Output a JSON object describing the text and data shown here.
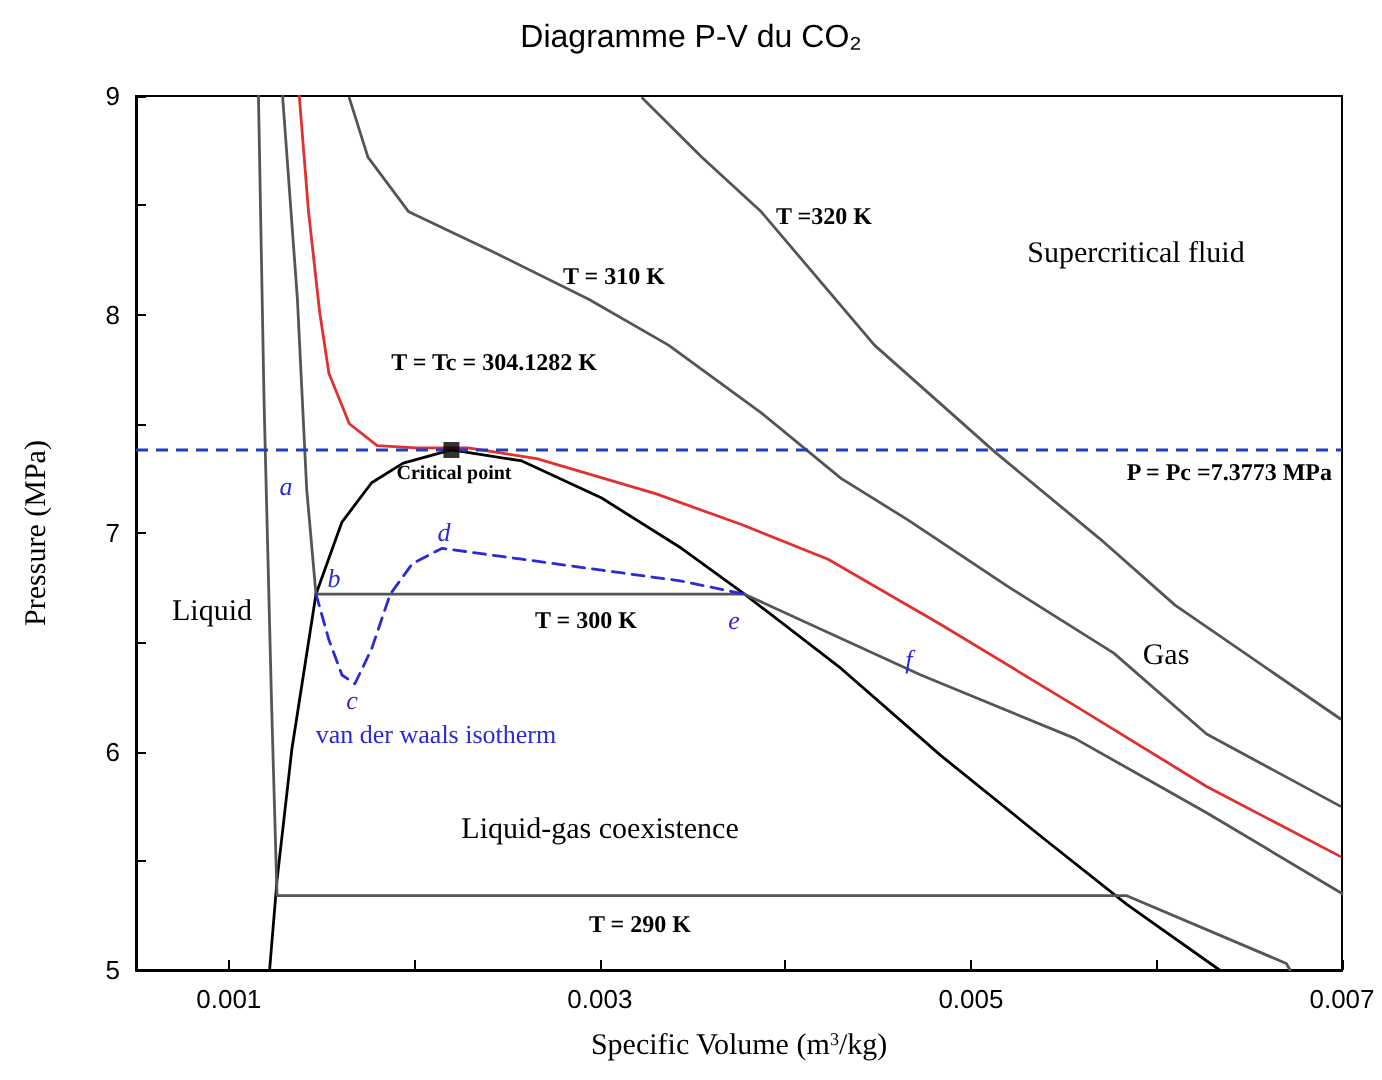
{
  "chart_data": {
    "type": "line",
    "title": "Diagramme P-V du CO₂",
    "xlabel": "Specific Volume (m$^{3}$/kg)",
    "ylabel": "Pressure (MPa)",
    "xlim": [
      0.0005,
      0.007
    ],
    "xticks": [
      0.001,
      {
        "value": 0.002,
        "label": null
      },
      0.003,
      {
        "value": 0.004,
        "label": null
      },
      0.005,
      {
        "value": 0.006,
        "label": null
      },
      0.007
    ],
    "ylim": [
      5,
      9
    ],
    "yticks": [
      5,
      {
        "value": 5.5,
        "label": null
      },
      6,
      {
        "value": 6.5,
        "label": null
      },
      7,
      {
        "value": 7.5,
        "label": null
      },
      8,
      {
        "value": 8.5,
        "label": null
      },
      9
    ],
    "grid": false,
    "marker": "none",
    "series": [
      {
        "color": "#000000",
        "line_style": "solid",
        "x": [
          0.00122,
          0.00126,
          0.00134,
          0.00147,
          0.00161,
          0.00177,
          0.00194,
          0.0022,
          0.00258,
          0.00301,
          0.00344,
          0.00378,
          0.0043,
          0.00484,
          0.00538,
          0.00584,
          0.00634
        ],
        "values": [
          5.0,
          5.41,
          6.01,
          6.72,
          7.05,
          7.23,
          7.32,
          7.38,
          7.33,
          7.16,
          6.93,
          6.72,
          6.38,
          5.98,
          5.61,
          5.3,
          5.0
        ]
      },
      {
        "color": "#555555",
        "line_style": "solid",
        "x": [
          0.00116,
          0.00119,
          0.00123,
          0.00126,
          0.00584,
          0.0067,
          0.00672
        ],
        "values": [
          9.0,
          7.61,
          6.24,
          5.34,
          5.34,
          5.03,
          5.0
        ]
      },
      {
        "color": "#555555",
        "line_style": "solid",
        "x": [
          0.00129,
          0.00137,
          0.00142,
          0.00147,
          0.00378,
          0.00473,
          0.00556,
          0.00627,
          0.007
        ],
        "values": [
          9.0,
          8.07,
          7.2,
          6.72,
          6.72,
          6.35,
          6.06,
          5.72,
          5.35
        ]
      },
      {
        "color": "#e03030",
        "line_style": "solid",
        "x": [
          0.00138,
          0.00143,
          0.00149,
          0.00154,
          0.00165,
          0.0018,
          0.00201,
          0.00229,
          0.00266,
          0.0033,
          0.00376,
          0.00423,
          0.00484,
          0.00556,
          0.00627,
          0.00699
        ],
        "values": [
          9.0,
          8.47,
          8.01,
          7.73,
          7.5,
          7.4,
          7.39,
          7.39,
          7.34,
          7.18,
          7.04,
          6.88,
          6.58,
          6.21,
          5.84,
          5.52
        ]
      },
      {
        "color": "#555555",
        "line_style": "solid",
        "x": [
          0.00165,
          0.00175,
          0.00197,
          0.00244,
          0.00294,
          0.00337,
          0.00387,
          0.0043,
          0.00466,
          0.00519,
          0.00577,
          0.00627,
          0.00699
        ],
        "values": [
          8.99,
          8.72,
          8.47,
          8.28,
          8.07,
          7.86,
          7.55,
          7.25,
          7.06,
          6.76,
          6.45,
          6.08,
          5.75
        ]
      },
      {
        "color": "#555555",
        "line_style": "solid",
        "x": [
          0.00323,
          0.00355,
          0.00387,
          0.00448,
          0.00513,
          0.0057,
          0.0061,
          0.00699
        ],
        "values": [
          8.99,
          8.72,
          8.47,
          7.86,
          7.37,
          6.97,
          6.67,
          6.15
        ]
      },
      {
        "color": "#2a2ad8",
        "line_style": "dashed",
        "x": [
          0.00147,
          0.00154,
          0.00161,
          0.00168,
          0.00177,
          0.00187,
          0.00199,
          0.00215,
          0.00258,
          0.00301,
          0.00344,
          0.00378
        ],
        "values": [
          6.72,
          6.51,
          6.35,
          6.31,
          6.47,
          6.72,
          6.86,
          6.93,
          6.88,
          6.83,
          6.78,
          6.72
        ]
      },
      {
        "type": "scatter",
        "marker": "square",
        "color": "#000000",
        "x": [
          0.0022
        ],
        "values": [
          7.38
        ]
      }
    ],
    "ref_lines": [
      {
        "axis": "y",
        "value": 7.3773,
        "label": "P = Pc =7.3773 MPa",
        "color": "#1f3fbf",
        "line_style": "dashed"
      }
    ],
    "annotations": [
      "Supercritical fluid",
      "Liquid",
      "Gas",
      "Liquid-gas coexistence",
      "van der waals isotherm",
      "Critical point",
      "T = Tc = 304.1282 K",
      "T = 310 K",
      "T =320 K",
      "T = 300 K",
      "T = 290 K",
      "a",
      "b",
      "c",
      "d",
      "e",
      {
        "text": "f",
        "x": 0.00473,
        "y": 6.35
      }
    ]
  }
}
